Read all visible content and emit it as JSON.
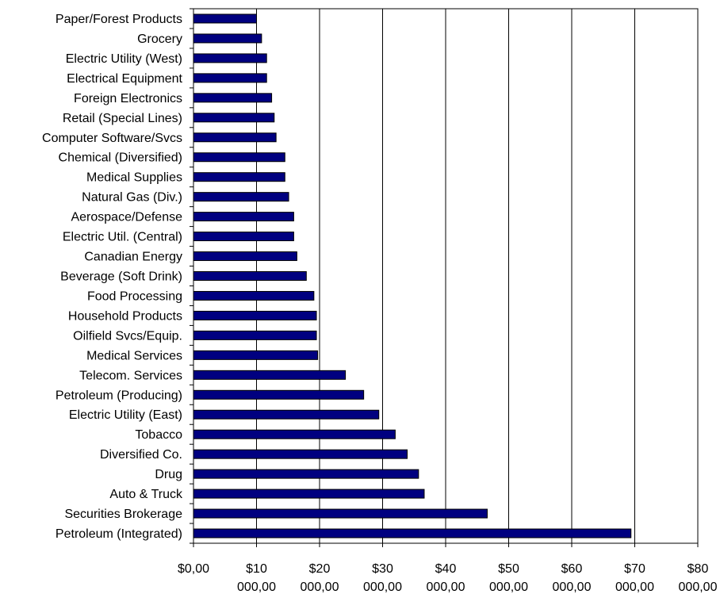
{
  "chart_data": {
    "type": "bar",
    "orientation": "horizontal",
    "title": "",
    "xlabel": "",
    "ylabel": "",
    "categories": [
      "Paper/Forest Products",
      "Grocery",
      "Electric Utility (West)",
      "Electrical Equipment",
      "Foreign Electronics",
      "Retail (Special Lines)",
      "Computer Software/Svcs",
      "Chemical (Diversified)",
      "Medical Supplies",
      "Natural Gas (Div.)",
      "Aerospace/Defense",
      "Electric Util. (Central)",
      "Canadian Energy",
      "Beverage (Soft Drink)",
      "Food Processing",
      "Household Products",
      "Oilfield Svcs/Equip.",
      "Medical Services",
      "Telecom. Services",
      "Petroleum (Producing)",
      "Electric Utility (East)",
      "Tobacco",
      "Diversified Co.",
      "Drug",
      "Auto & Truck",
      "Securities Brokerage",
      "Petroleum (Integrated)"
    ],
    "values": [
      10000,
      10800,
      11600,
      11600,
      12400,
      12800,
      13100,
      14500,
      14500,
      15100,
      15900,
      15900,
      16400,
      17900,
      19100,
      19500,
      19500,
      19700,
      24100,
      27000,
      29400,
      32000,
      33900,
      35700,
      36600,
      46600,
      69400
    ],
    "xlim": [
      0,
      80000
    ],
    "x_ticks": [
      0,
      10000,
      20000,
      30000,
      40000,
      50000,
      60000,
      70000,
      80000
    ],
    "x_tick_labels": [
      {
        "line1": "$0,00",
        "line2": ""
      },
      {
        "line1": "$10",
        "line2": "000,00"
      },
      {
        "line1": "$20",
        "line2": "000,00"
      },
      {
        "line1": "$30",
        "line2": "000,00"
      },
      {
        "line1": "$40",
        "line2": "000,00"
      },
      {
        "line1": "$50",
        "line2": "000,00"
      },
      {
        "line1": "$60",
        "line2": "000,00"
      },
      {
        "line1": "$70",
        "line2": "000,00"
      },
      {
        "line1": "$80",
        "line2": "000,00"
      }
    ],
    "grid": "vertical major gridlines",
    "legend": "none",
    "colors": {
      "bar_fill": "#000080",
      "bar_stroke": "#000000",
      "gridline": "#000000",
      "axis": "#000000",
      "background": "#ffffff"
    }
  }
}
